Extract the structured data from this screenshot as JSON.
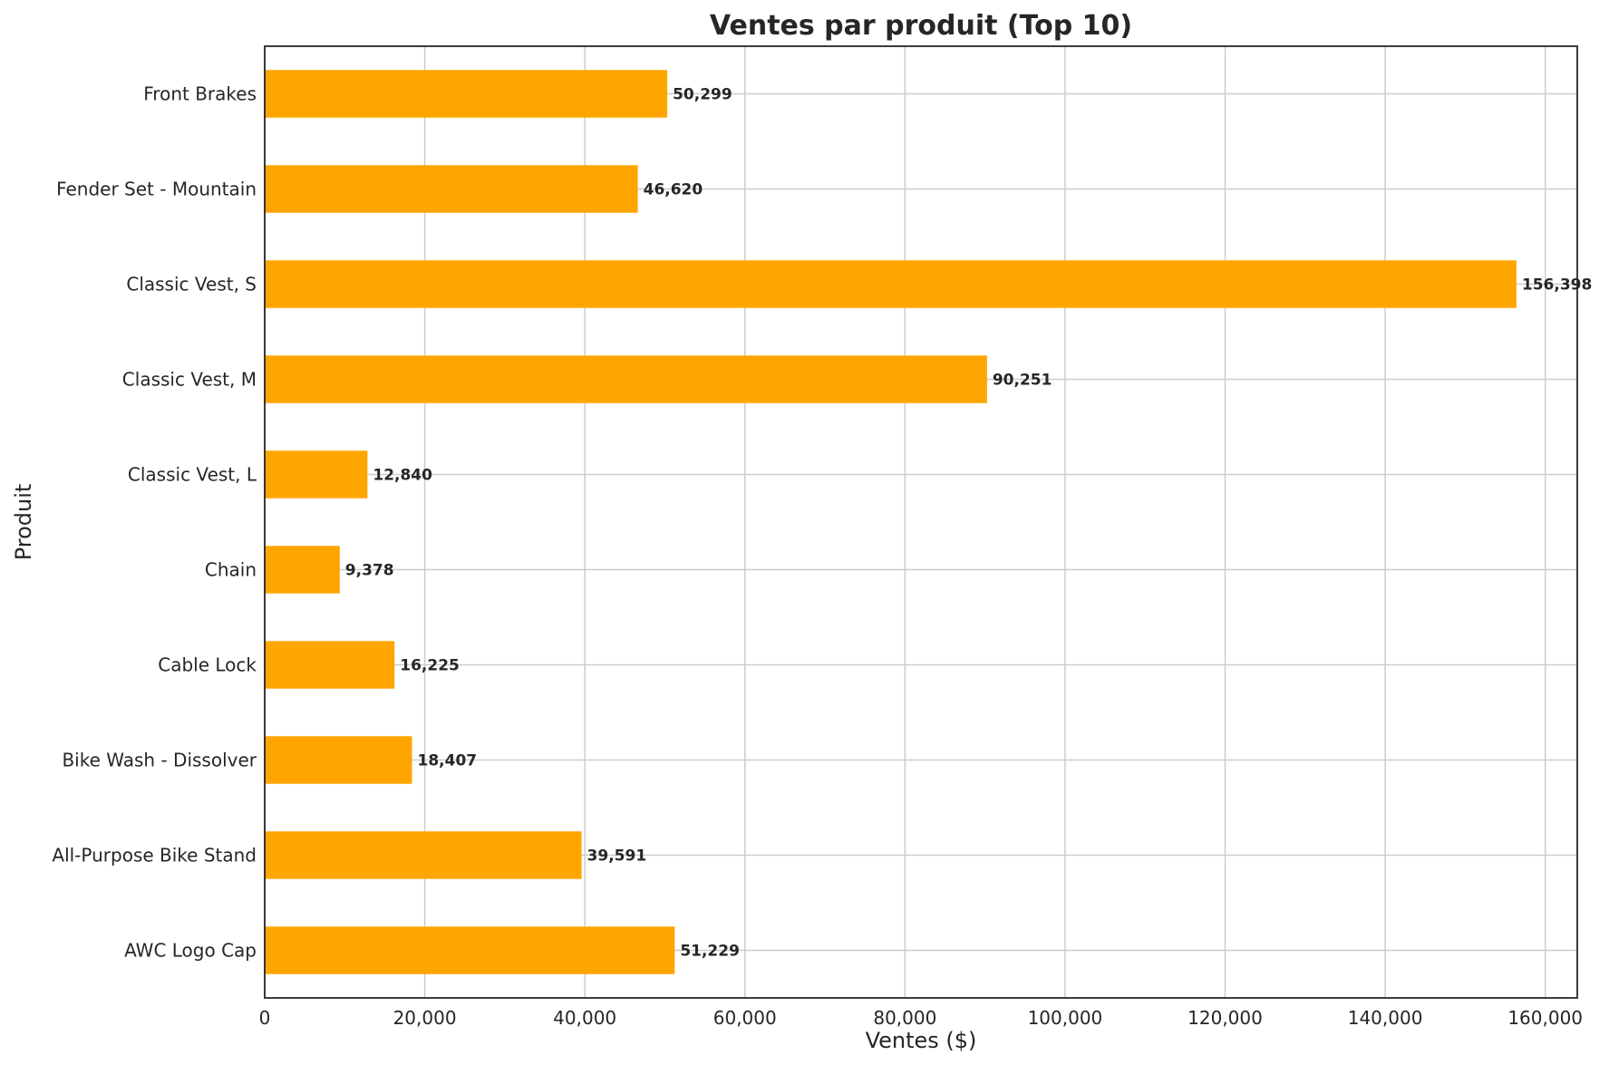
{
  "chart_data": {
    "type": "bar",
    "orientation": "horizontal",
    "title": "Ventes par produit (Top 10)",
    "xlabel": "Ventes ($)",
    "ylabel": "Produit",
    "xlim": [
      0,
      164000
    ],
    "xticks": [
      0,
      20000,
      40000,
      60000,
      80000,
      100000,
      120000,
      140000,
      160000
    ],
    "xtick_labels": [
      "0",
      "20,000",
      "40,000",
      "60,000",
      "80,000",
      "100,000",
      "120,000",
      "140,000",
      "160,000"
    ],
    "grid": true,
    "bar_color": "#FFA500",
    "categories": [
      "Front Brakes",
      "Fender Set - Mountain",
      "Classic Vest, S",
      "Classic Vest, M",
      "Classic Vest, L",
      "Chain",
      "Cable Lock",
      "Bike Wash - Dissolver",
      "All-Purpose Bike Stand",
      "AWC Logo Cap"
    ],
    "values": [
      50299,
      46620,
      156398,
      90251,
      12840,
      9378,
      16225,
      18407,
      39591,
      51229
    ],
    "value_labels": [
      "50,299",
      "46,620",
      "156,398",
      "90,251",
      "12,840",
      "9,378",
      "16,225",
      "18,407",
      "39,591",
      "51,229"
    ]
  }
}
